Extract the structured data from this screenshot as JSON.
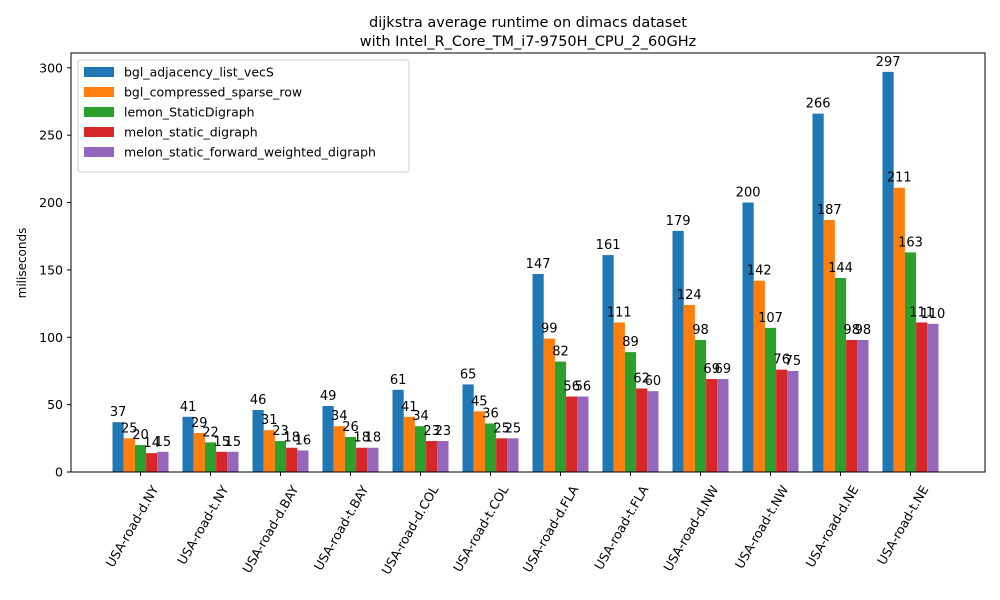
{
  "chart_data": {
    "type": "bar",
    "title_line1": "dijkstra average runtime on dimacs dataset",
    "title_line2": "with Intel_R_Core_TM_i7-9750H_CPU_2_60GHz",
    "xlabel": "",
    "ylabel": "miliseconds",
    "ylim": [
      0,
      311
    ],
    "yticks": [
      0,
      50,
      100,
      150,
      200,
      250,
      300
    ],
    "legend_position": "top-left",
    "grid": false,
    "categories": [
      "USA-road-d.NY",
      "USA-road-t.NY",
      "USA-road-d.BAY",
      "USA-road-t.BAY",
      "USA-road-d.COL",
      "USA-road-t.COL",
      "USA-road-d.FLA",
      "USA-road-t.FLA",
      "USA-road-d.NW",
      "USA-road-t.NW",
      "USA-road-d.NE",
      "USA-road-t.NE"
    ],
    "series": [
      {
        "name": "bgl_adjacency_list_vecS",
        "color": "#1f77b4",
        "values": [
          37,
          41,
          46,
          49,
          61,
          65,
          147,
          161,
          179,
          200,
          266,
          297
        ]
      },
      {
        "name": "bgl_compressed_sparse_row",
        "color": "#ff7f0e",
        "values": [
          25,
          29,
          31,
          34,
          41,
          45,
          99,
          111,
          124,
          142,
          187,
          211
        ]
      },
      {
        "name": "lemon_StaticDigraph",
        "color": "#2ca02c",
        "values": [
          20,
          22,
          23,
          26,
          34,
          36,
          82,
          89,
          98,
          107,
          144,
          163
        ]
      },
      {
        "name": "melon_static_digraph",
        "color": "#d62728",
        "values": [
          14,
          15,
          18,
          18,
          23,
          25,
          56,
          62,
          69,
          76,
          98,
          111
        ]
      },
      {
        "name": "melon_static_forward_weighted_digraph",
        "color": "#9467bd",
        "values": [
          15,
          15,
          16,
          18,
          23,
          25,
          56,
          60,
          69,
          75,
          98,
          110
        ]
      }
    ]
  }
}
